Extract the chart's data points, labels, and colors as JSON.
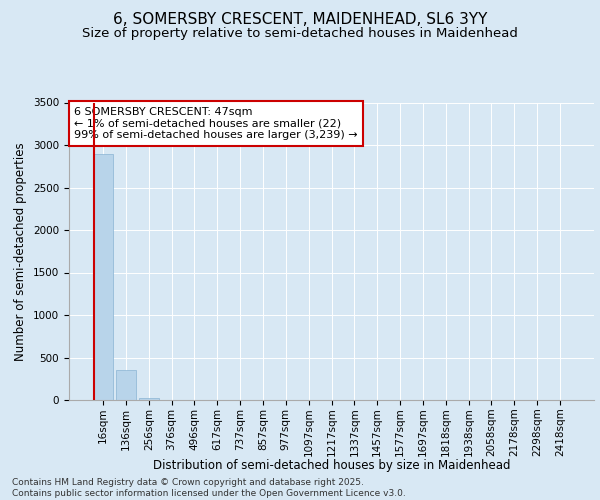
{
  "title": "6, SOMERSBY CRESCENT, MAIDENHEAD, SL6 3YY",
  "subtitle": "Size of property relative to semi-detached houses in Maidenhead",
  "xlabel": "Distribution of semi-detached houses by size in Maidenhead",
  "ylabel": "Number of semi-detached properties",
  "categories": [
    "16sqm",
    "136sqm",
    "256sqm",
    "376sqm",
    "496sqm",
    "617sqm",
    "737sqm",
    "857sqm",
    "977sqm",
    "1097sqm",
    "1217sqm",
    "1337sqm",
    "1457sqm",
    "1577sqm",
    "1697sqm",
    "1818sqm",
    "1938sqm",
    "2058sqm",
    "2178sqm",
    "2298sqm",
    "2418sqm"
  ],
  "values": [
    2900,
    350,
    22,
    0,
    0,
    0,
    0,
    0,
    0,
    0,
    0,
    0,
    0,
    0,
    0,
    0,
    0,
    0,
    0,
    0,
    0
  ],
  "bar_color": "#b8d4ea",
  "bar_edge_color": "#8ab4d4",
  "vline_color": "#cc0000",
  "annotation_text": "6 SOMERSBY CRESCENT: 47sqm\n← 1% of semi-detached houses are smaller (22)\n99% of semi-detached houses are larger (3,239) →",
  "annotation_box_color": "#cc0000",
  "ylim": [
    0,
    3500
  ],
  "yticks": [
    0,
    500,
    1000,
    1500,
    2000,
    2500,
    3000,
    3500
  ],
  "background_color": "#d8e8f4",
  "plot_bg_color": "#d8e8f4",
  "grid_color": "#ffffff",
  "footer_text": "Contains HM Land Registry data © Crown copyright and database right 2025.\nContains public sector information licensed under the Open Government Licence v3.0.",
  "title_fontsize": 11,
  "subtitle_fontsize": 9.5,
  "axis_label_fontsize": 8.5,
  "tick_fontsize": 7.5,
  "annotation_fontsize": 8,
  "footer_fontsize": 6.5
}
